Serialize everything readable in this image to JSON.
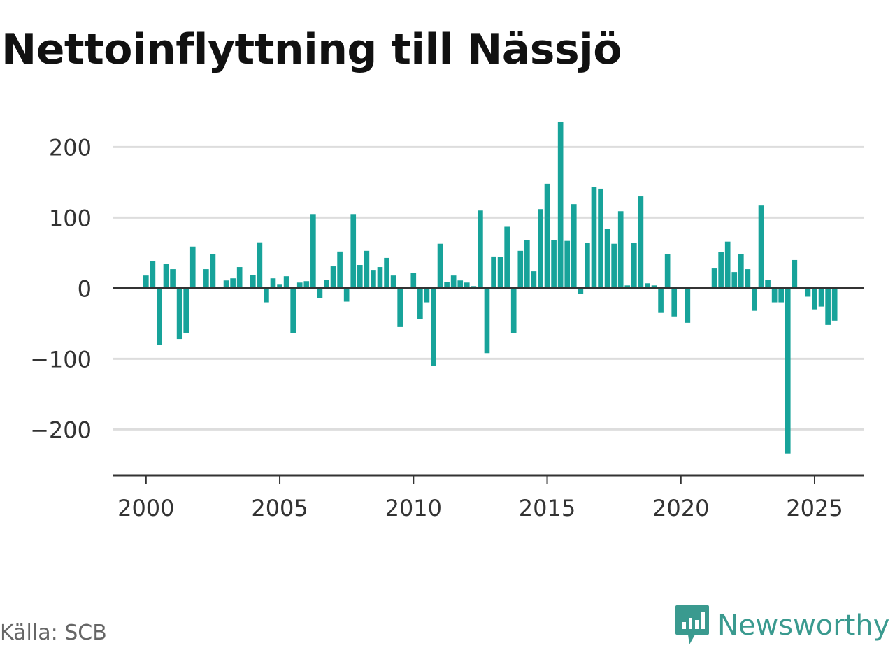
{
  "title": "Nettoinflyttning till Nässjö",
  "source": "Källa: SCB",
  "brand": {
    "name": "Newsworthy",
    "icon": "newsworthy-logo-icon",
    "color": "#3a9a8f"
  },
  "colors": {
    "bar": "#17a39a",
    "grid": "#dddddd",
    "axis": "#333333",
    "tick_text": "#333333"
  },
  "chart_data": {
    "type": "bar",
    "frequency": "quarterly",
    "x_start": "2000-Q1",
    "x_ticks": [
      2000,
      2005,
      2010,
      2015,
      2020,
      2025
    ],
    "y_ticks": [
      200,
      100,
      0,
      -100,
      -200
    ],
    "ylim": [
      -265,
      235
    ],
    "xlim": [
      1998.75,
      2026.83
    ],
    "grid": true,
    "values": [
      18,
      38,
      -80,
      34,
      27,
      -72,
      -63,
      59,
      0,
      27,
      48,
      0,
      11,
      14,
      30,
      0,
      19,
      65,
      -20,
      14,
      5,
      17,
      -64,
      8,
      10,
      105,
      -14,
      12,
      31,
      52,
      -19,
      105,
      33,
      53,
      25,
      30,
      43,
      18,
      -55,
      0,
      22,
      -44,
      -20,
      -110,
      63,
      9,
      18,
      11,
      8,
      3,
      110,
      -92,
      45,
      44,
      87,
      -64,
      53,
      68,
      24,
      112,
      148,
      68,
      236,
      67,
      119,
      -8,
      64,
      143,
      141,
      84,
      63,
      109,
      4,
      64,
      130,
      7,
      4,
      -35,
      48,
      -40,
      0,
      -49,
      0,
      0,
      0,
      28,
      51,
      66,
      23,
      48,
      27,
      -32,
      117,
      12,
      -20,
      -20,
      -234,
      40,
      0,
      -12,
      -30,
      -26,
      -52,
      -46
    ]
  }
}
